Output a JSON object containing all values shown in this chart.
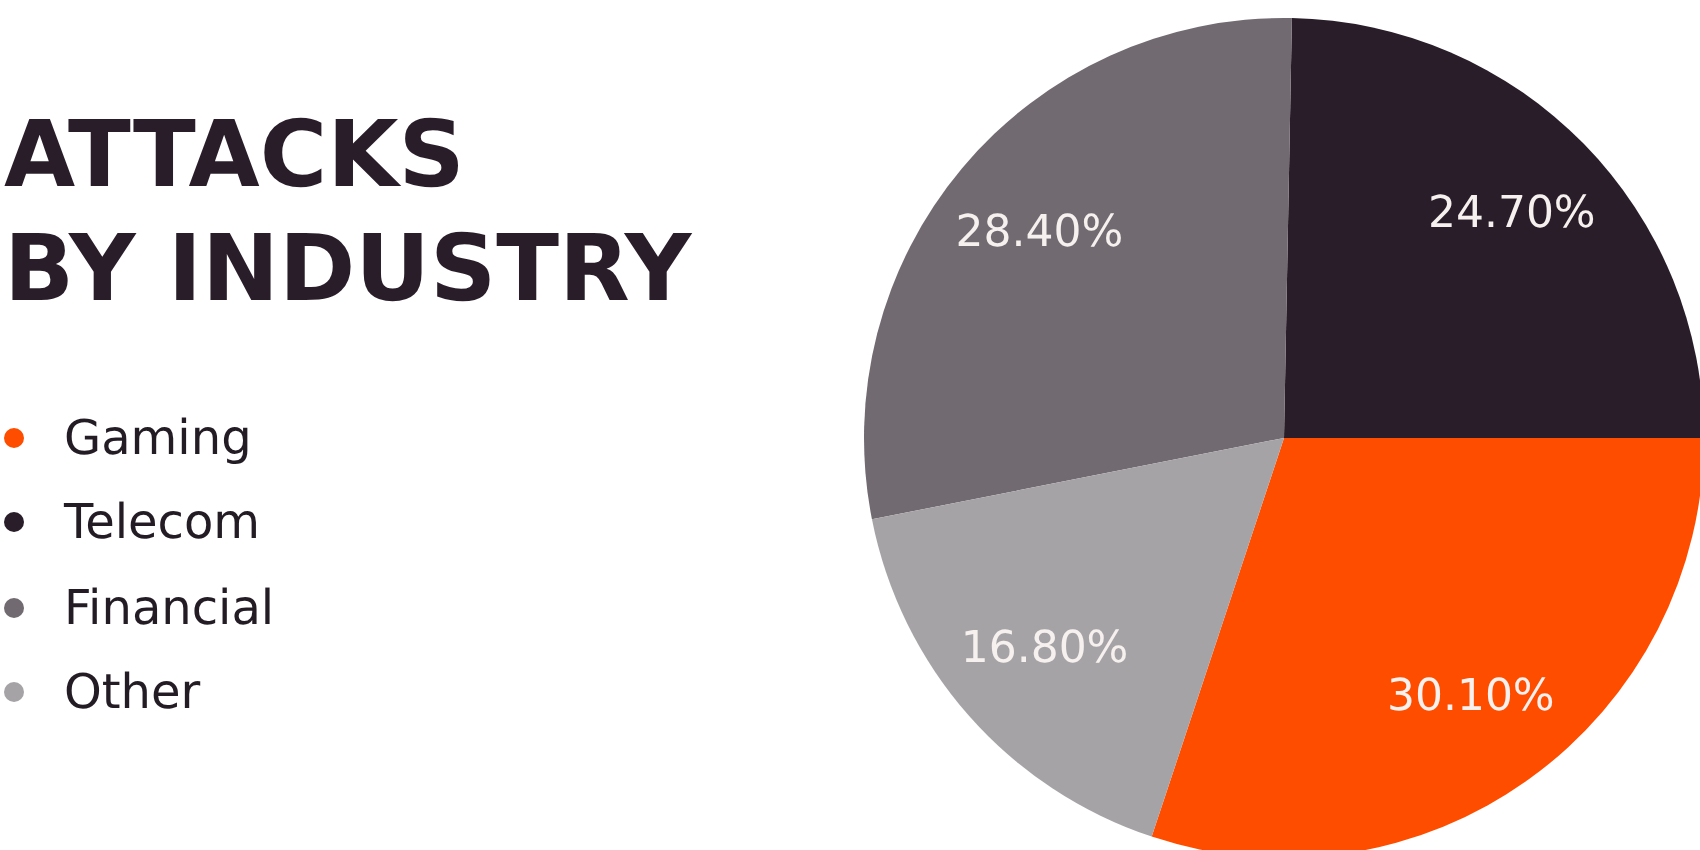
{
  "chart_data": {
    "type": "pie",
    "title": "ATTACKS\nBY INDUSTRY",
    "categories": [
      "Gaming",
      "Telecom",
      "Financial",
      "Other"
    ],
    "values": [
      30.1,
      24.7,
      28.4,
      16.8
    ],
    "colors": [
      "#ff4d00",
      "#281d29",
      "#716a71",
      "#a6a3a7"
    ],
    "value_labels": [
      "30.10%",
      "24.70%",
      "28.40%",
      "16.80%"
    ],
    "legend": "left"
  }
}
